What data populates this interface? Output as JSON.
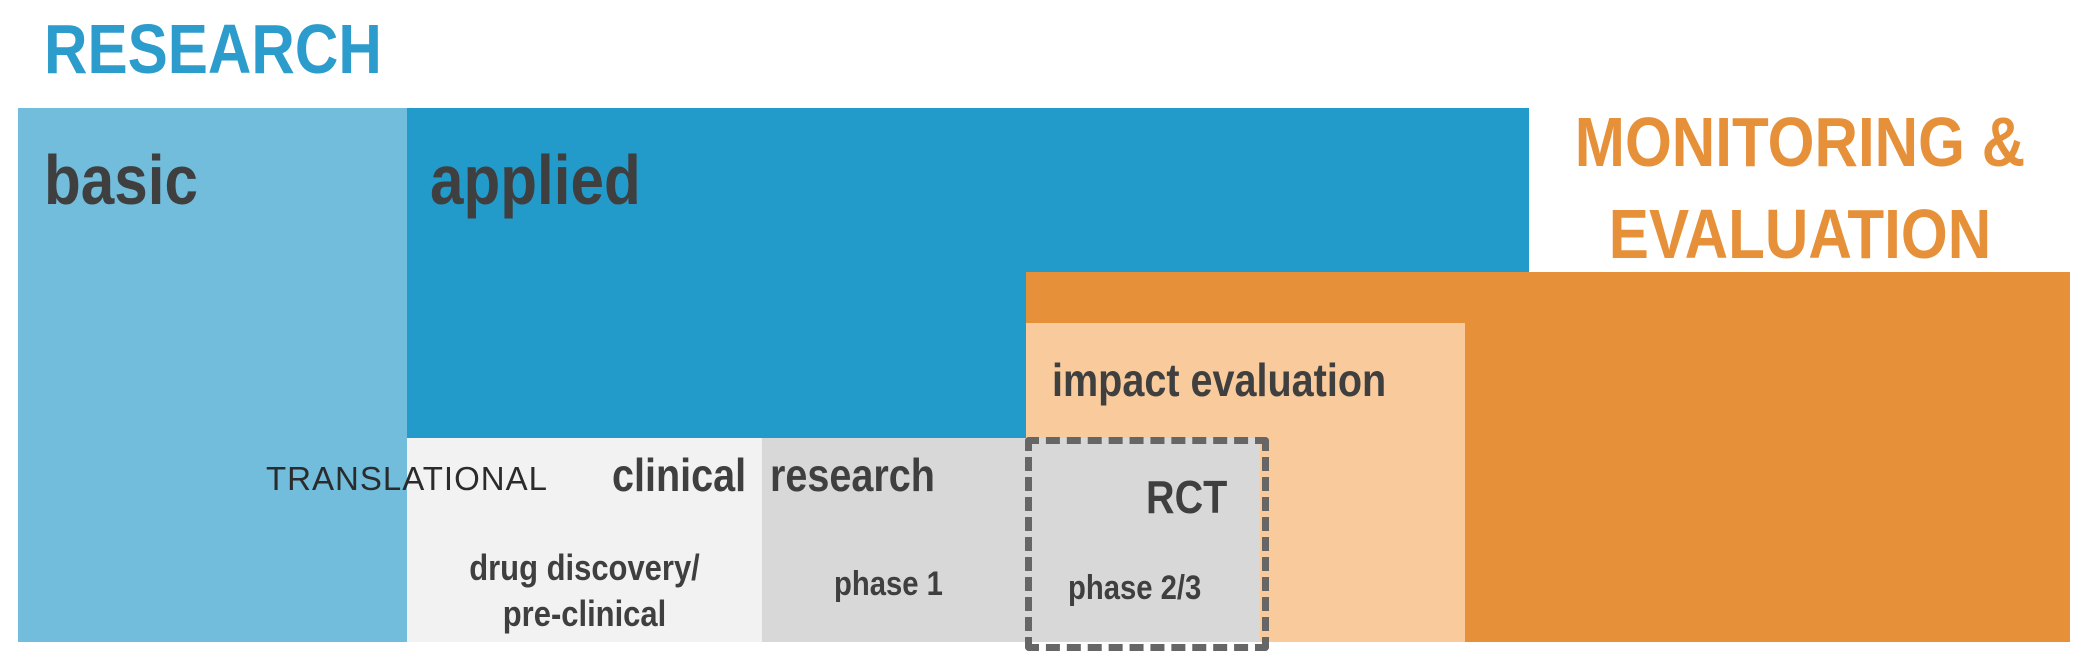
{
  "colors": {
    "research": "#2b9ccb",
    "monitoring_evaluation": "#e6913a",
    "basic_fill": "#72bcdc",
    "applied_fill": "#229bcb",
    "me_fill": "#e6913a",
    "impact_fill": "#f8ca9c",
    "discovery_fill": "#f2f2f2",
    "clinical_fill": "#d8d8d8"
  },
  "headings": {
    "research": "RESEARCH",
    "monitoring_evaluation_line1": "MONITORING &",
    "monitoring_evaluation_line2": "EVALUATION"
  },
  "blocks": {
    "basic": "basic",
    "applied": "applied",
    "impact_evaluation": "impact evaluation",
    "translational": "TRANSLATIONAL",
    "clinical": "clinical",
    "clinical_research": "research",
    "rct": "RCT",
    "drug_discovery_line1": "drug discovery/",
    "drug_discovery_line2": "pre-clinical",
    "phase1": "phase 1",
    "phase23": "phase 2/3"
  }
}
